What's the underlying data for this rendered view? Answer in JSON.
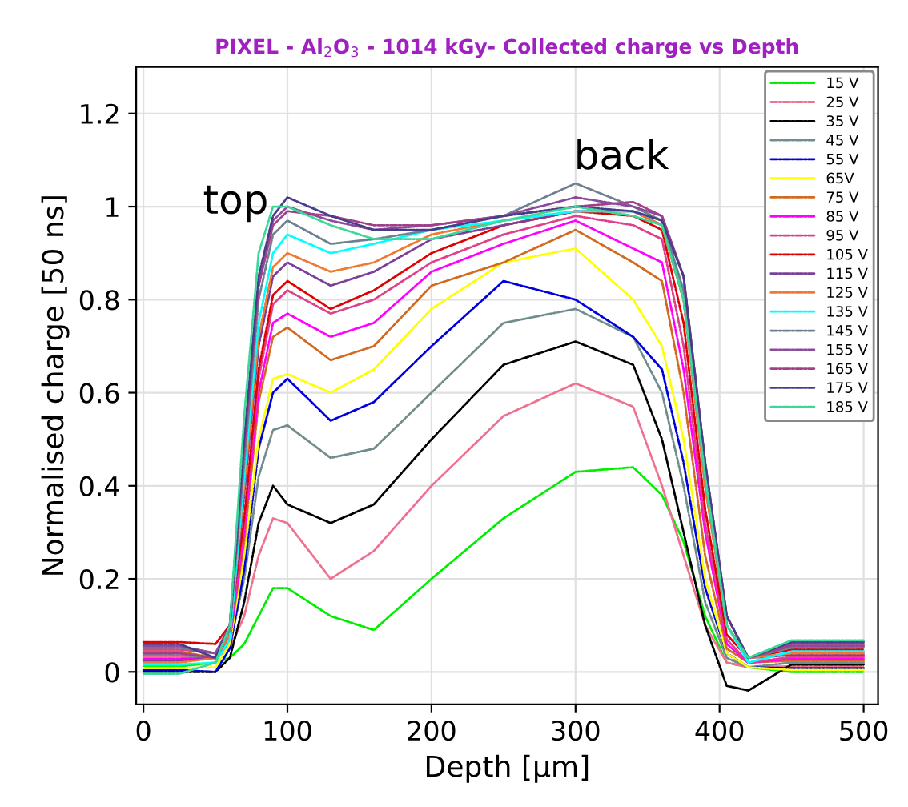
{
  "chart_data": {
    "type": "line",
    "title": "PIXEL - Al$_{2}$O$_{3}$ - 1014 kGy- Collected charge vs Depth",
    "xlabel": "Depth [μm]",
    "ylabel": "Normalised charge [50 ns]",
    "annotations": [
      "top",
      "back"
    ],
    "x": [
      0,
      25,
      50,
      60,
      70,
      80,
      90,
      100,
      130,
      160,
      200,
      250,
      300,
      340,
      360,
      375,
      390,
      405,
      420,
      450,
      500
    ],
    "xlim": [
      -5,
      510
    ],
    "ylim": [
      -0.07,
      1.3
    ],
    "xticks": [
      0,
      100,
      200,
      300,
      400,
      500
    ],
    "yticks": [
      0,
      0.2,
      0.4,
      0.6,
      0.8,
      1,
      1.2
    ],
    "grid": true,
    "legend": "top right",
    "line_style": "dashed",
    "marker": "none",
    "series": [
      {
        "name": "15 V",
        "color": "#00ee00",
        "values": [
          0.012,
          0.012,
          0.02,
          0.03,
          0.06,
          0.12,
          0.18,
          0.18,
          0.12,
          0.09,
          0.2,
          0.33,
          0.43,
          0.44,
          0.38,
          0.28,
          0.12,
          0.02,
          0.01,
          0.0,
          0.0
        ]
      },
      {
        "name": "25 V",
        "color": "#f07090",
        "values": [
          0.032,
          0.032,
          0.03,
          0.05,
          0.12,
          0.25,
          0.33,
          0.32,
          0.2,
          0.26,
          0.4,
          0.55,
          0.62,
          0.57,
          0.4,
          0.25,
          0.1,
          0.02,
          0.01,
          0.012,
          0.012
        ]
      },
      {
        "name": "35 V",
        "color": "#000000",
        "values": [
          0.0,
          0.0,
          0.0,
          0.03,
          0.15,
          0.32,
          0.4,
          0.36,
          0.32,
          0.36,
          0.5,
          0.66,
          0.71,
          0.66,
          0.5,
          0.3,
          0.1,
          -0.03,
          -0.04,
          0.016,
          0.016
        ]
      },
      {
        "name": "45 V",
        "color": "#708c8c",
        "values": [
          0.036,
          0.036,
          0.03,
          0.06,
          0.2,
          0.42,
          0.52,
          0.53,
          0.46,
          0.48,
          0.6,
          0.75,
          0.78,
          0.72,
          0.6,
          0.4,
          0.15,
          0.03,
          0.01,
          0.02,
          0.02
        ]
      },
      {
        "name": "55 V",
        "color": "#0000dd",
        "values": [
          0.004,
          0.004,
          0.0,
          0.05,
          0.22,
          0.48,
          0.6,
          0.63,
          0.54,
          0.58,
          0.7,
          0.84,
          0.8,
          0.72,
          0.65,
          0.45,
          0.18,
          0.04,
          0.01,
          0.008,
          0.008
        ]
      },
      {
        "name": "65V",
        "color": "#ffff00",
        "values": [
          0.008,
          0.008,
          0.01,
          0.06,
          0.25,
          0.5,
          0.63,
          0.64,
          0.6,
          0.65,
          0.78,
          0.88,
          0.91,
          0.8,
          0.7,
          0.5,
          0.2,
          0.04,
          0.01,
          0.004,
          0.004
        ]
      },
      {
        "name": "75 V",
        "color": "#d2691e",
        "values": [
          0.044,
          0.044,
          0.03,
          0.07,
          0.28,
          0.58,
          0.72,
          0.74,
          0.67,
          0.7,
          0.83,
          0.88,
          0.95,
          0.88,
          0.84,
          0.6,
          0.25,
          0.05,
          0.02,
          0.024,
          0.024
        ]
      },
      {
        "name": "85 V",
        "color": "#ff00ff",
        "values": [
          0.028,
          0.028,
          0.03,
          0.07,
          0.3,
          0.6,
          0.75,
          0.77,
          0.72,
          0.75,
          0.86,
          0.92,
          0.97,
          0.91,
          0.88,
          0.65,
          0.3,
          0.06,
          0.02,
          0.028,
          0.028
        ]
      },
      {
        "name": "95 V",
        "color": "#e0408a",
        "values": [
          0.048,
          0.048,
          0.04,
          0.08,
          0.32,
          0.63,
          0.79,
          0.82,
          0.77,
          0.8,
          0.88,
          0.94,
          0.98,
          0.96,
          0.93,
          0.7,
          0.32,
          0.07,
          0.02,
          0.032,
          0.032
        ]
      },
      {
        "name": "105 V",
        "color": "#e00000",
        "values": [
          0.064,
          0.064,
          0.06,
          0.1,
          0.33,
          0.65,
          0.81,
          0.84,
          0.78,
          0.82,
          0.9,
          0.96,
          0.99,
          0.98,
          0.95,
          0.75,
          0.35,
          0.08,
          0.03,
          0.048,
          0.048
        ]
      },
      {
        "name": "115 V",
        "color": "#7a3f9a",
        "values": [
          0.024,
          0.024,
          0.03,
          0.08,
          0.38,
          0.7,
          0.85,
          0.88,
          0.83,
          0.86,
          0.93,
          0.96,
          0.99,
          0.99,
          0.96,
          0.8,
          0.4,
          0.1,
          0.03,
          0.036,
          0.036
        ]
      },
      {
        "name": "125 V",
        "color": "#f07830",
        "values": [
          0.02,
          0.02,
          0.03,
          0.08,
          0.4,
          0.72,
          0.87,
          0.9,
          0.86,
          0.88,
          0.94,
          0.97,
          0.99,
          0.99,
          0.96,
          0.8,
          0.4,
          0.1,
          0.03,
          0.04,
          0.04
        ]
      },
      {
        "name": "135 V",
        "color": "#00ffff",
        "values": [
          0.016,
          0.016,
          0.02,
          0.07,
          0.42,
          0.75,
          0.9,
          0.94,
          0.9,
          0.92,
          0.95,
          0.97,
          0.99,
          0.99,
          0.97,
          0.82,
          0.42,
          0.1,
          0.02,
          0.044,
          0.044
        ]
      },
      {
        "name": "145 V",
        "color": "#6f7f8f",
        "values": [
          0.052,
          0.052,
          0.04,
          0.09,
          0.45,
          0.8,
          0.94,
          0.97,
          0.92,
          0.93,
          0.95,
          0.98,
          1.05,
          1.0,
          0.97,
          0.82,
          0.42,
          0.1,
          0.03,
          0.052,
          0.052
        ]
      },
      {
        "name": "155 V",
        "color": "#8b4a9b",
        "values": [
          0.056,
          0.056,
          0.04,
          0.1,
          0.48,
          0.83,
          0.97,
          1.0,
          0.97,
          0.95,
          0.96,
          0.98,
          1.02,
          1.0,
          0.98,
          0.85,
          0.45,
          0.12,
          0.03,
          0.056,
          0.056
        ]
      },
      {
        "name": "165 V",
        "color": "#a0408a",
        "values": [
          0.04,
          0.04,
          0.03,
          0.1,
          0.48,
          0.83,
          0.96,
          0.99,
          0.98,
          0.96,
          0.96,
          0.98,
          1.0,
          1.01,
          0.98,
          0.85,
          0.45,
          0.12,
          0.03,
          0.06,
          0.06
        ]
      },
      {
        "name": "175 V",
        "color": "#483d8b",
        "values": [
          0.06,
          0.06,
          0.03,
          0.1,
          0.5,
          0.85,
          0.98,
          1.02,
          0.98,
          0.95,
          0.95,
          0.98,
          1.0,
          0.99,
          0.97,
          0.85,
          0.45,
          0.12,
          0.03,
          0.064,
          0.064
        ]
      },
      {
        "name": "185 V",
        "color": "#3cd89a",
        "values": [
          -0.004,
          -0.004,
          0.02,
          0.1,
          0.55,
          0.9,
          1.0,
          1.0,
          0.96,
          0.93,
          0.93,
          0.97,
          1.0,
          0.98,
          0.96,
          0.8,
          0.42,
          0.1,
          0.03,
          0.068,
          0.068
        ]
      }
    ]
  }
}
